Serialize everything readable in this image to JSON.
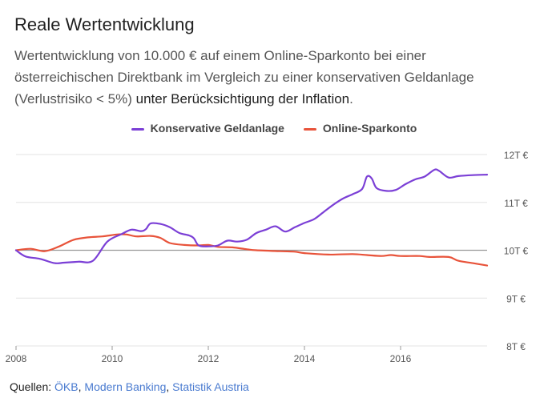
{
  "title": "Reale Wertentwicklung",
  "subtitle_part1": "Wertentwicklung von 10.000 € auf einem Online-Sparkonto bei einer österreichischen Direktbank im Vergleich zu einer konservativen Geldanlage (Verlustrisiko < 5%) ",
  "subtitle_emph": "unter Berücksichtigung der Inflation",
  "subtitle_end": ".",
  "sources_label": "Quellen:",
  "sources": [
    "ÖKB",
    "Modern Banking",
    "Statistik Austria"
  ],
  "colors": {
    "purple": "#7b3fd6",
    "red": "#e8533a"
  },
  "chart_data": {
    "type": "line",
    "xlim": [
      2008,
      2017.8
    ],
    "ylim": [
      8000,
      12000
    ],
    "x_ticks": [
      2008,
      2010,
      2012,
      2014,
      2016
    ],
    "y_ticks": [
      {
        "value": 12000,
        "label": "12T €"
      },
      {
        "value": 11000,
        "label": "11T €"
      },
      {
        "value": 10000,
        "label": "10T €"
      },
      {
        "value": 9000,
        "label": "9T €"
      },
      {
        "value": 8000,
        "label": "8T €"
      }
    ],
    "series": [
      {
        "name": "Konservative Geldanlage",
        "color": "#7b3fd6",
        "points": [
          [
            2008.0,
            10000
          ],
          [
            2008.2,
            9870
          ],
          [
            2008.5,
            9820
          ],
          [
            2008.8,
            9730
          ],
          [
            2009.0,
            9740
          ],
          [
            2009.3,
            9760
          ],
          [
            2009.6,
            9780
          ],
          [
            2009.9,
            10180
          ],
          [
            2010.2,
            10340
          ],
          [
            2010.4,
            10430
          ],
          [
            2010.6,
            10400
          ],
          [
            2010.7,
            10440
          ],
          [
            2010.8,
            10560
          ],
          [
            2011.0,
            10550
          ],
          [
            2011.2,
            10480
          ],
          [
            2011.4,
            10360
          ],
          [
            2011.6,
            10310
          ],
          [
            2011.7,
            10250
          ],
          [
            2011.8,
            10100
          ],
          [
            2012.0,
            10080
          ],
          [
            2012.2,
            10100
          ],
          [
            2012.4,
            10200
          ],
          [
            2012.6,
            10180
          ],
          [
            2012.8,
            10220
          ],
          [
            2013.0,
            10360
          ],
          [
            2013.2,
            10430
          ],
          [
            2013.4,
            10500
          ],
          [
            2013.6,
            10390
          ],
          [
            2013.8,
            10480
          ],
          [
            2014.0,
            10570
          ],
          [
            2014.2,
            10650
          ],
          [
            2014.4,
            10800
          ],
          [
            2014.6,
            10950
          ],
          [
            2014.8,
            11080
          ],
          [
            2015.0,
            11170
          ],
          [
            2015.2,
            11280
          ],
          [
            2015.3,
            11540
          ],
          [
            2015.4,
            11500
          ],
          [
            2015.5,
            11300
          ],
          [
            2015.7,
            11240
          ],
          [
            2015.9,
            11260
          ],
          [
            2016.1,
            11380
          ],
          [
            2016.3,
            11480
          ],
          [
            2016.5,
            11540
          ],
          [
            2016.7,
            11680
          ],
          [
            2016.8,
            11660
          ],
          [
            2017.0,
            11520
          ],
          [
            2017.2,
            11550
          ],
          [
            2017.5,
            11570
          ],
          [
            2017.8,
            11580
          ]
        ]
      },
      {
        "name": "Online-Sparkonto",
        "color": "#e8533a",
        "points": [
          [
            2008.0,
            10000
          ],
          [
            2008.3,
            10030
          ],
          [
            2008.6,
            9980
          ],
          [
            2008.9,
            10080
          ],
          [
            2009.2,
            10220
          ],
          [
            2009.5,
            10270
          ],
          [
            2009.8,
            10290
          ],
          [
            2010.1,
            10330
          ],
          [
            2010.3,
            10330
          ],
          [
            2010.5,
            10290
          ],
          [
            2010.8,
            10300
          ],
          [
            2011.0,
            10260
          ],
          [
            2011.2,
            10150
          ],
          [
            2011.5,
            10110
          ],
          [
            2011.8,
            10100
          ],
          [
            2012.0,
            10110
          ],
          [
            2012.2,
            10070
          ],
          [
            2012.5,
            10060
          ],
          [
            2012.8,
            10020
          ],
          [
            2013.0,
            10000
          ],
          [
            2013.5,
            9980
          ],
          [
            2013.8,
            9970
          ],
          [
            2014.0,
            9940
          ],
          [
            2014.5,
            9910
          ],
          [
            2015.0,
            9920
          ],
          [
            2015.3,
            9900
          ],
          [
            2015.6,
            9880
          ],
          [
            2015.8,
            9900
          ],
          [
            2016.0,
            9880
          ],
          [
            2016.4,
            9880
          ],
          [
            2016.6,
            9860
          ],
          [
            2017.0,
            9860
          ],
          [
            2017.2,
            9780
          ],
          [
            2017.5,
            9730
          ],
          [
            2017.8,
            9680
          ]
        ]
      }
    ],
    "reference_line": 10000,
    "legend_position": "top-center"
  }
}
